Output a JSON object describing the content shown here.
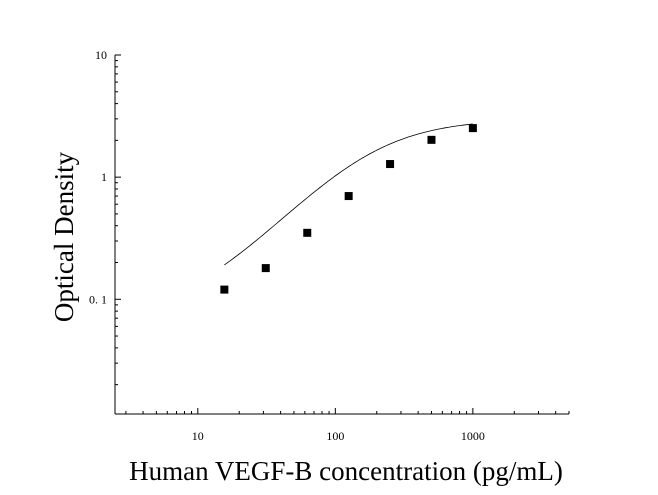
{
  "chart_data": {
    "type": "scatter",
    "xlabel": "Human VEGF-B concentration (pg/mL)",
    "ylabel": "Optical Density",
    "x_scale": "log",
    "y_scale": "log",
    "xlim": [
      2.5,
      5000
    ],
    "ylim": [
      0.0115,
      10
    ],
    "x_ticks": [
      {
        "value": 10,
        "label": "10"
      },
      {
        "value": 100,
        "label": "100"
      },
      {
        "value": 1000,
        "label": "1000"
      }
    ],
    "y_ticks": [
      {
        "value": 0.1,
        "label": "0. 1"
      },
      {
        "value": 1,
        "label": "1"
      },
      {
        "value": 10,
        "label": "10"
      }
    ],
    "series": [
      {
        "points": [
          {
            "x": 15.6,
            "y": 0.12
          },
          {
            "x": 31.2,
            "y": 0.18
          },
          {
            "x": 62.5,
            "y": 0.35
          },
          {
            "x": 125,
            "y": 0.7
          },
          {
            "x": 250,
            "y": 1.28
          },
          {
            "x": 500,
            "y": 2.02
          },
          {
            "x": 1000,
            "y": 2.52
          }
        ],
        "marker": "square",
        "color": "#000000"
      }
    ],
    "fit_curve": {
      "type": "4PL",
      "min": 0.07,
      "max": 3.0,
      "ec50": 175,
      "hill": 1.3
    },
    "grid": false
  }
}
